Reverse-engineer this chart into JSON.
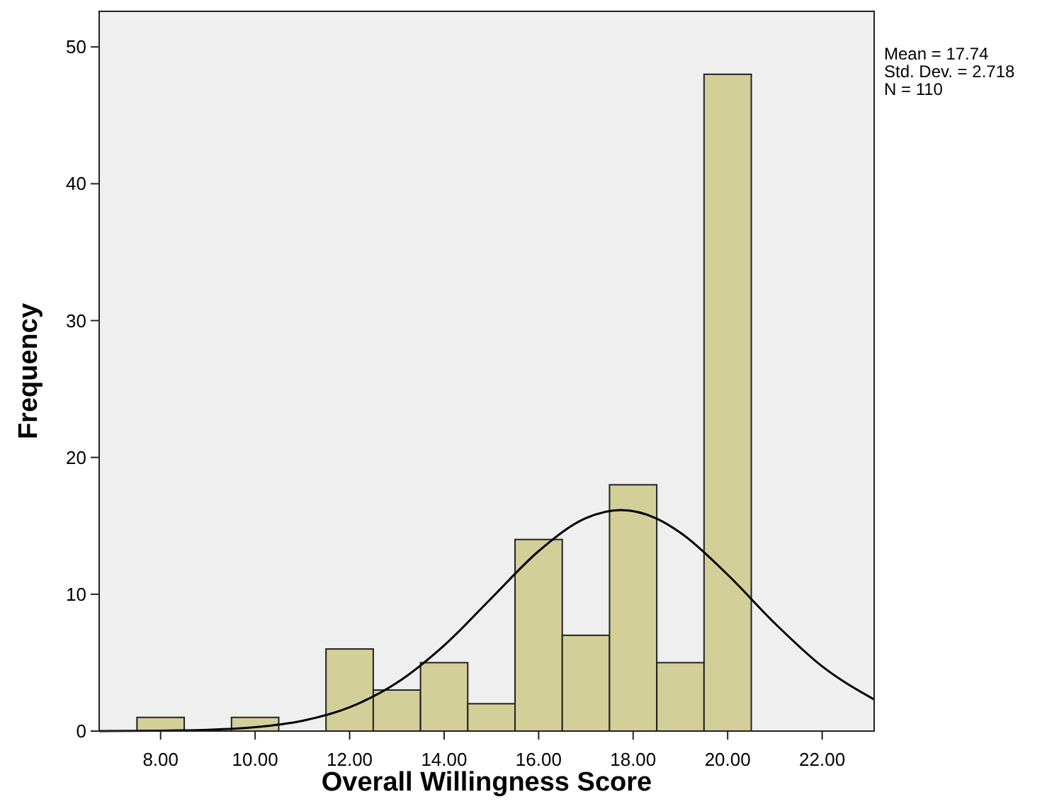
{
  "chart_data": {
    "type": "histogram",
    "xlabel": "Overall Willingness Score",
    "ylabel": "Frequency",
    "bins": [
      7.5,
      8.5,
      9.5,
      10.5,
      11.5,
      12.5,
      13.5,
      14.5,
      15.5,
      16.5,
      17.5,
      18.5,
      19.5,
      20.5
    ],
    "values": [
      1,
      0,
      1,
      0,
      6,
      3,
      5,
      2,
      14,
      7,
      18,
      5,
      48
    ],
    "color": "#d3cf98",
    "series": [
      {
        "type": "line",
        "color": "#000000",
        "x": [
          6.7,
          8,
          9,
          10,
          11,
          12,
          13,
          14,
          15,
          16,
          17,
          17.74,
          18.5,
          19,
          20,
          21,
          22,
          23.1
        ],
        "values": [
          0.0,
          0.03,
          0.09,
          0.28,
          0.75,
          1.74,
          3.53,
          6.26,
          9.71,
          13.15,
          15.56,
          16.15,
          15.53,
          14.5,
          11.43,
          7.87,
          4.73,
          2.31
        ]
      }
    ],
    "xlim": [
      6.7,
      23.1
    ],
    "ylim": [
      0,
      52.6
    ],
    "xticks": [
      {
        "value": 8,
        "label": "8.00"
      },
      {
        "value": 10,
        "label": "10.00"
      },
      {
        "value": 12,
        "label": "12.00"
      },
      {
        "value": 14,
        "label": "14.00"
      },
      {
        "value": 16,
        "label": "16.00"
      },
      {
        "value": 18,
        "label": "18.00"
      },
      {
        "value": 20,
        "label": "20.00"
      },
      {
        "value": 22,
        "label": "22.00"
      }
    ],
    "yticks": [
      0,
      10,
      20,
      30,
      40,
      50
    ],
    "annotations": [
      "Mean = 17.74",
      "Std. Dev. = 2.718",
      "N = 110"
    ]
  }
}
